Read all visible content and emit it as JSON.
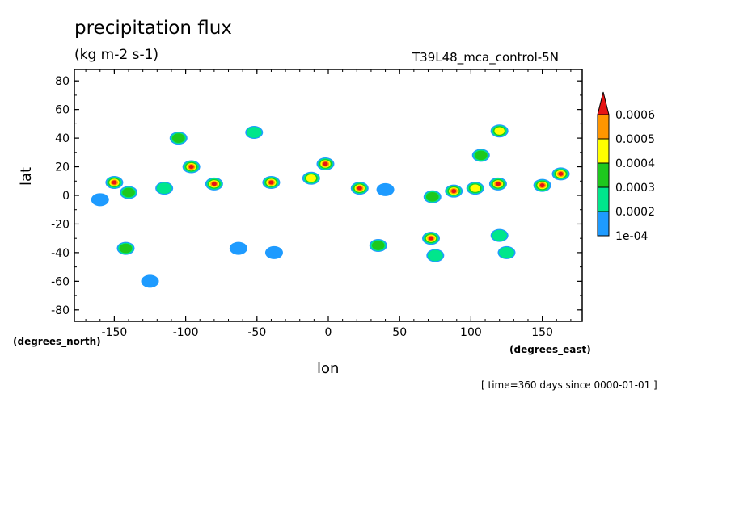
{
  "chart_data": {
    "type": "heatmap",
    "title": "precipitation flux",
    "units": "(kg m-2 s-1)",
    "run_label": "T39L48_mca_control-5N",
    "xlabel": "lon",
    "ylabel": "lat",
    "x_units_label": "(degrees_east)",
    "y_units_label": "(degrees_north)",
    "time_label": "[ time=360 days since 0000-01-01 ]",
    "xlim": [
      -178,
      178
    ],
    "ylim": [
      -88,
      88
    ],
    "x_ticks": [
      -150,
      -100,
      -50,
      0,
      50,
      100,
      150
    ],
    "x_tick_labels": [
      "-150",
      "-100",
      "-50",
      "0",
      "50",
      "100",
      "150"
    ],
    "y_ticks": [
      80,
      60,
      40,
      20,
      0,
      -20,
      -40,
      -60,
      -80
    ],
    "y_tick_labels": [
      "80",
      "60",
      "40",
      "20",
      "0",
      "-20",
      "-40",
      "-60",
      "-80"
    ],
    "colorbar": {
      "levels": [
        0.0001,
        0.0002,
        0.0003,
        0.0004,
        0.0005,
        0.0006
      ],
      "labels": [
        "1e-04",
        "0.0002",
        "0.0003",
        "0.0004",
        "0.0005",
        "0.0006"
      ],
      "colors": [
        "#1e9bff",
        "#00e68c",
        "#1ec81e",
        "#ffff00",
        "#ff9600",
        "#e61414"
      ]
    },
    "cells": [
      {
        "lon": -150,
        "lat": 9,
        "level": 6
      },
      {
        "lon": -140,
        "lat": 2,
        "level": 3
      },
      {
        "lon": -160,
        "lat": -3,
        "level": 1
      },
      {
        "lon": -115,
        "lat": 5,
        "level": 2
      },
      {
        "lon": -96,
        "lat": 20,
        "level": 6
      },
      {
        "lon": -80,
        "lat": 8,
        "level": 6
      },
      {
        "lon": -105,
        "lat": 40,
        "level": 3
      },
      {
        "lon": -52,
        "lat": 44,
        "level": 2
      },
      {
        "lon": -40,
        "lat": 9,
        "level": 6
      },
      {
        "lon": -2,
        "lat": 22,
        "level": 6
      },
      {
        "lon": -12,
        "lat": 12,
        "level": 4
      },
      {
        "lon": 22,
        "lat": 5,
        "level": 6
      },
      {
        "lon": 40,
        "lat": 4,
        "level": 1
      },
      {
        "lon": 73,
        "lat": -1,
        "level": 3
      },
      {
        "lon": 88,
        "lat": 3,
        "level": 6
      },
      {
        "lon": 103,
        "lat": 5,
        "level": 4
      },
      {
        "lon": 119,
        "lat": 8,
        "level": 6
      },
      {
        "lon": 150,
        "lat": 7,
        "level": 6
      },
      {
        "lon": 163,
        "lat": 15,
        "level": 6
      },
      {
        "lon": 120,
        "lat": 45,
        "level": 4
      },
      {
        "lon": 107,
        "lat": 28,
        "level": 3
      },
      {
        "lon": -142,
        "lat": -37,
        "level": 3
      },
      {
        "lon": 35,
        "lat": -35,
        "level": 3
      },
      {
        "lon": 72,
        "lat": -30,
        "level": 6
      },
      {
        "lon": 75,
        "lat": -42,
        "level": 2
      },
      {
        "lon": 125,
        "lat": -40,
        "level": 2
      },
      {
        "lon": -63,
        "lat": -37,
        "level": 1
      },
      {
        "lon": -38,
        "lat": -40,
        "level": 1
      },
      {
        "lon": 120,
        "lat": -28,
        "level": 2
      },
      {
        "lon": -125,
        "lat": -60,
        "level": 1
      }
    ],
    "grid": false
  }
}
